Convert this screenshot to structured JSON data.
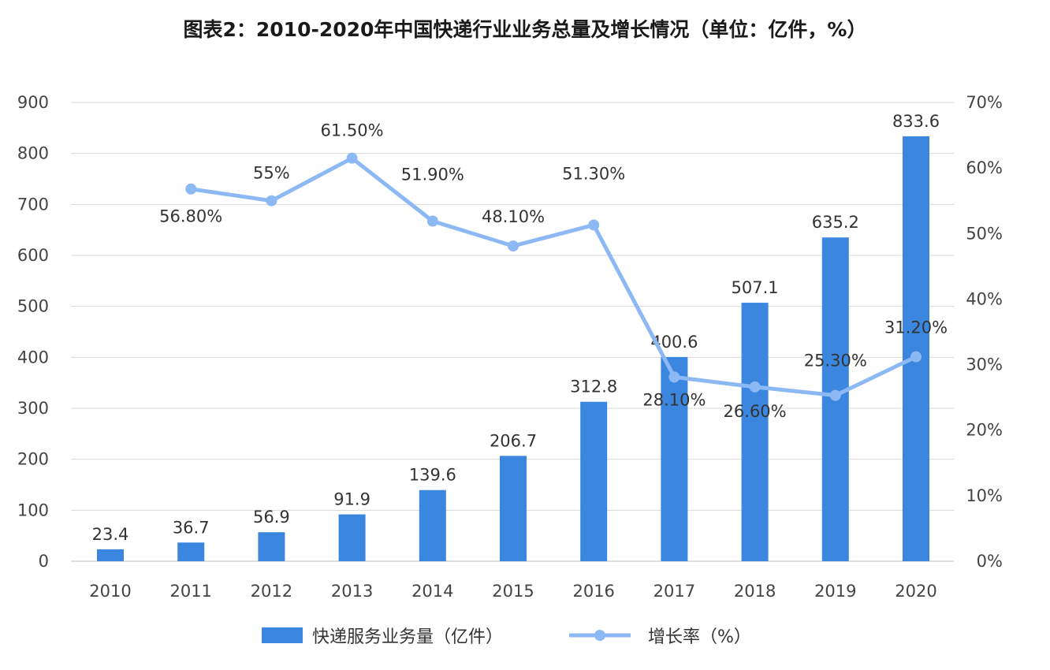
{
  "chart_data": {
    "type": "bar+line",
    "title": "图表2：2010-2020年中国快递行业业务总量及增长情况（单位：亿件，%）",
    "categories": [
      "2010",
      "2011",
      "2012",
      "2013",
      "2014",
      "2015",
      "2016",
      "2017",
      "2018",
      "2019",
      "2020"
    ],
    "y_left": {
      "range": [
        0,
        900
      ],
      "ticks": [
        "0",
        "100",
        "200",
        "300",
        "400",
        "500",
        "600",
        "700",
        "800",
        "900"
      ]
    },
    "y_right": {
      "range": [
        0,
        70
      ],
      "ticks": [
        "0%",
        "10%",
        "20%",
        "30%",
        "40%",
        "50%",
        "60%",
        "70%"
      ]
    },
    "grid": true,
    "legend_position": "bottom",
    "series": [
      {
        "name": "快递服务业务量（亿件）",
        "type": "bar",
        "axis": "left",
        "color": "#3b87e0",
        "values": [
          23.4,
          36.7,
          56.9,
          91.9,
          139.6,
          206.7,
          312.8,
          400.6,
          507.1,
          635.2,
          833.6
        ],
        "labels": [
          "23.4",
          "36.7",
          "56.9",
          "91.9",
          "139.6",
          "206.7",
          "312.8",
          "400.6",
          "507.1",
          "635.2",
          "833.6"
        ]
      },
      {
        "name": "增长率（%）",
        "type": "line",
        "axis": "right",
        "color": "#8cb9f4",
        "values": [
          null,
          56.8,
          55,
          61.5,
          51.9,
          48.1,
          51.3,
          28.1,
          26.6,
          25.3,
          31.2
        ],
        "labels": [
          "",
          "56.80%",
          "55%",
          "61.50%",
          "51.90%",
          "48.10%",
          "51.30%",
          "28.10%",
          "26.60%",
          "25.30%",
          "31.20%"
        ]
      }
    ]
  }
}
